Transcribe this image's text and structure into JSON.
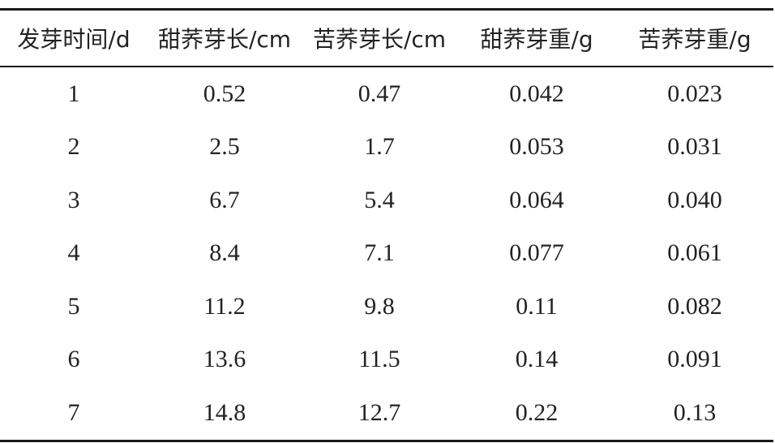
{
  "table": {
    "headers": [
      "发芽时间/d",
      "甜荞芽长/cm",
      "苦荞芽长/cm",
      "甜荞芽重/g",
      "苦荞芽重/g"
    ],
    "rows": [
      [
        "1",
        "0.52",
        "0.47",
        "0.042",
        "0.023"
      ],
      [
        "2",
        "2.5",
        "1.7",
        "0.053",
        "0.031"
      ],
      [
        "3",
        "6.7",
        "5.4",
        "0.064",
        "0.040"
      ],
      [
        "4",
        "8.4",
        "7.1",
        "0.077",
        "0.061"
      ],
      [
        "5",
        "11.2",
        "9.8",
        "0.11",
        "0.082"
      ],
      [
        "6",
        "13.6",
        "11.5",
        "0.14",
        "0.091"
      ],
      [
        "7",
        "14.8",
        "12.7",
        "0.22",
        "0.13"
      ]
    ]
  }
}
